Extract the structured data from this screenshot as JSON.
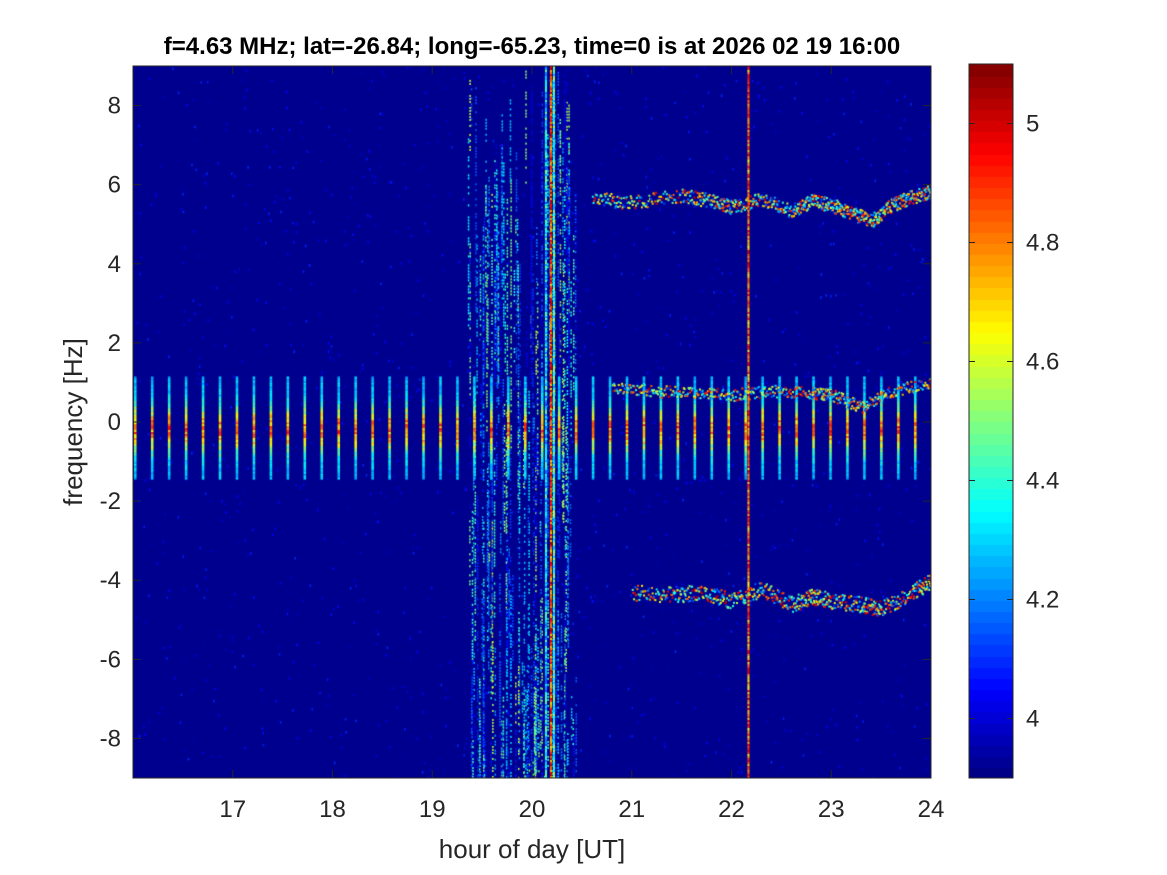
{
  "chart_data": {
    "type": "heatmap",
    "title": "f=4.63 MHz;  lat=-26.84; long=-65.23, time=0 is at 2026 02 19 16:00",
    "xlabel": "hour of day [UT]",
    "ylabel": "frequency [Hz]",
    "xlim": [
      16.0,
      24.0
    ],
    "ylim": [
      -9.0,
      9.0
    ],
    "xticks": [
      17,
      18,
      19,
      20,
      21,
      22,
      23,
      24
    ],
    "yticks": [
      -8,
      -6,
      -4,
      -2,
      0,
      2,
      4,
      6,
      8
    ],
    "colormap": "jet",
    "colorbar": {
      "clim": [
        3.9,
        5.1
      ],
      "ticks": [
        4,
        4.2,
        4.4,
        4.6,
        4.8,
        5
      ],
      "tick_labels": [
        "4",
        "4.2",
        "4.4",
        "4.6",
        "4.8",
        "5"
      ]
    },
    "background_value": 3.9,
    "background_color": "#00008F",
    "features": {
      "periodic_pulses": {
        "x_start": 16.0,
        "x_end": 23.9,
        "spacing_hours": 0.17,
        "y_range": [
          -1.4,
          1.2
        ],
        "peak_value": 4.95
      },
      "strong_vertical_lines": [
        {
          "x": 20.14,
          "value": 4.5
        },
        {
          "x": 20.19,
          "value": 5.05
        },
        {
          "x": 20.22,
          "value": 4.6
        },
        {
          "x": 22.17,
          "value": 5.0
        }
      ],
      "noise_band": {
        "x_range": [
          19.35,
          20.45
        ],
        "value_range": [
          4.0,
          4.6
        ]
      },
      "upper_doppler_trace": [
        [
          20.6,
          5.7
        ],
        [
          21.0,
          5.55
        ],
        [
          21.5,
          5.75
        ],
        [
          21.8,
          5.6
        ],
        [
          22.0,
          5.45
        ],
        [
          22.3,
          5.65
        ],
        [
          22.6,
          5.35
        ],
        [
          22.8,
          5.6
        ],
        [
          23.0,
          5.5
        ],
        [
          23.2,
          5.3
        ],
        [
          23.4,
          5.1
        ],
        [
          23.6,
          5.5
        ],
        [
          23.8,
          5.7
        ],
        [
          24.0,
          5.85
        ]
      ],
      "middle_doppler_trace": [
        [
          20.8,
          0.9
        ],
        [
          21.2,
          0.8
        ],
        [
          21.6,
          0.75
        ],
        [
          22.0,
          0.7
        ],
        [
          22.4,
          0.8
        ],
        [
          22.8,
          0.75
        ],
        [
          23.0,
          0.7
        ],
        [
          23.3,
          0.4
        ],
        [
          23.6,
          0.8
        ],
        [
          24.0,
          1.0
        ]
      ],
      "lower_doppler_trace": [
        [
          21.0,
          -4.3
        ],
        [
          21.4,
          -4.35
        ],
        [
          21.7,
          -4.3
        ],
        [
          22.0,
          -4.5
        ],
        [
          22.3,
          -4.2
        ],
        [
          22.6,
          -4.6
        ],
        [
          22.8,
          -4.4
        ],
        [
          23.0,
          -4.5
        ],
        [
          23.3,
          -4.6
        ],
        [
          23.5,
          -4.7
        ],
        [
          23.8,
          -4.3
        ],
        [
          24.0,
          -4.0
        ]
      ]
    }
  }
}
